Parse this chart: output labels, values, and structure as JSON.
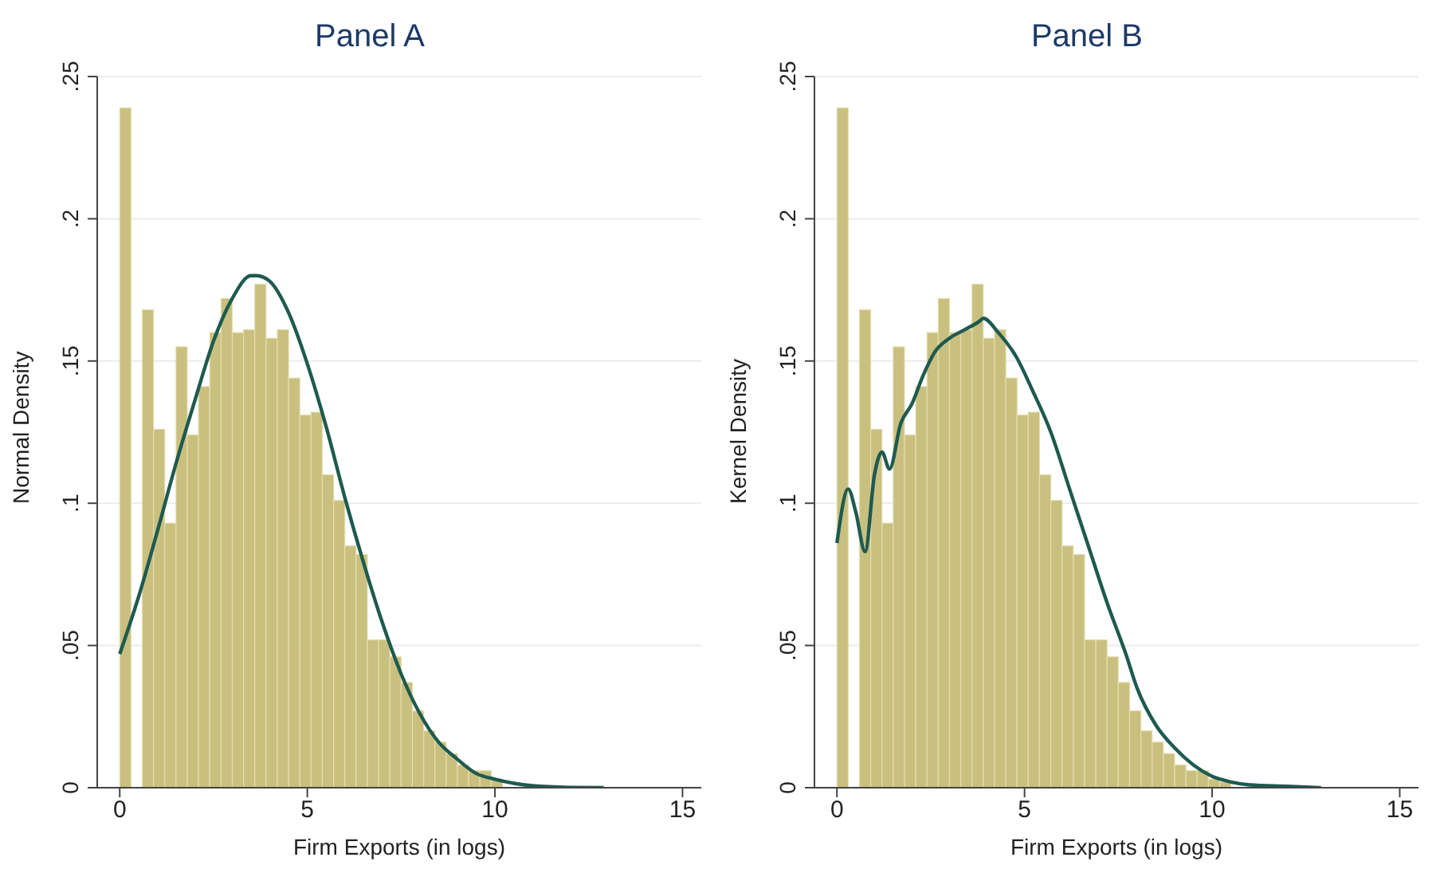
{
  "chart_data": [
    {
      "type": "histogram",
      "title": "Panel A",
      "xlabel": "Firm Exports (in logs)",
      "ylabel": "Normal Density",
      "color": "#c9c07f",
      "grid": "y",
      "bins": [
        0,
        0.3,
        0.6,
        0.9,
        1.2,
        1.5,
        1.8,
        2.1,
        2.4,
        2.7,
        3.0,
        3.3,
        3.6,
        3.9,
        4.2,
        4.5,
        4.8,
        5.1,
        5.4,
        5.7,
        6.0,
        6.3,
        6.6,
        6.9,
        7.2,
        7.5,
        7.8,
        8.1,
        8.4,
        8.7,
        9.0,
        9.3,
        9.6,
        9.9,
        10.2,
        10.5,
        10.8,
        11.1,
        11.4,
        11.7,
        12.0,
        12.3,
        12.6,
        12.9
      ],
      "values": [
        0.239,
        0,
        0.168,
        0.126,
        0.093,
        0.155,
        0.124,
        0.141,
        0.16,
        0.172,
        0.16,
        0.161,
        0.177,
        0.158,
        0.161,
        0.144,
        0.131,
        0.132,
        0.11,
        0.101,
        0.085,
        0.082,
        0.052,
        0.052,
        0.046,
        0.037,
        0.027,
        0.02,
        0.016,
        0.012,
        0.008,
        0.006,
        0.006,
        0.003,
        null,
        null,
        null,
        0.0005,
        0.0003,
        0.0003,
        0.0002,
        0.0002,
        null
      ],
      "series": [
        {
          "type": "line",
          "color": "#1e5a50",
          "x": [
            0,
            0.5,
            1,
            1.5,
            2,
            2.5,
            3,
            3.5,
            3.65,
            4,
            4.5,
            5,
            5.5,
            6,
            6.5,
            7,
            7.5,
            8,
            8.5,
            9,
            9.5,
            10,
            11,
            12,
            12.9
          ],
          "values": [
            0.047,
            0.067,
            0.09,
            0.114,
            0.136,
            0.157,
            0.172,
            0.18,
            0.18,
            0.178,
            0.167,
            0.149,
            0.127,
            0.102,
            0.079,
            0.058,
            0.04,
            0.026,
            0.016,
            0.01,
            0.005,
            0.003,
            0.0007,
            0.0001,
            0
          ]
        }
      ],
      "xlim": [
        -0.6,
        15.5
      ],
      "xticks": [
        0,
        5,
        10,
        15
      ],
      "ylim": [
        0,
        0.25
      ],
      "yticks": [
        0,
        {
          "value": 0.05,
          "label": ".05"
        },
        {
          "value": 0.1,
          "label": ".1"
        },
        {
          "value": 0.15,
          "label": ".15"
        },
        {
          "value": 0.2,
          "label": ".2"
        },
        {
          "value": 0.25,
          "label": ".25"
        }
      ]
    },
    {
      "type": "histogram",
      "title": "Panel B",
      "xlabel": "Firm Exports (in logs)",
      "ylabel": "Kernel Density",
      "color": "#c9c07f",
      "grid": "y",
      "bins": [
        0,
        0.3,
        0.6,
        0.9,
        1.2,
        1.5,
        1.8,
        2.1,
        2.4,
        2.7,
        3.0,
        3.3,
        3.6,
        3.9,
        4.2,
        4.5,
        4.8,
        5.1,
        5.4,
        5.7,
        6.0,
        6.3,
        6.6,
        6.9,
        7.2,
        7.5,
        7.8,
        8.1,
        8.4,
        8.7,
        9.0,
        9.3,
        9.6,
        9.9,
        10.2,
        10.5,
        10.8,
        11.1,
        11.4,
        11.7,
        12.0,
        12.3,
        12.6,
        12.9
      ],
      "values": [
        0.239,
        0,
        0.168,
        0.126,
        0.093,
        0.155,
        0.124,
        0.141,
        0.16,
        0.172,
        0.16,
        0.161,
        0.177,
        0.158,
        0.161,
        0.144,
        0.131,
        0.132,
        0.11,
        0.101,
        0.085,
        0.082,
        0.052,
        0.052,
        0.046,
        0.037,
        0.027,
        0.02,
        0.016,
        0.012,
        0.008,
        0.006,
        0.006,
        0.003,
        0.002,
        null,
        null,
        0.0005,
        0.0003,
        0.0003,
        0.0002,
        0.0002,
        null
      ],
      "series": [
        {
          "type": "line",
          "color": "#1e5a50",
          "x": [
            0,
            0.3,
            0.5,
            0.75,
            1.0,
            1.2,
            1.4,
            1.7,
            2.0,
            2.3,
            2.6,
            3.0,
            3.4,
            3.8,
            3.9,
            4.3,
            4.8,
            5.2,
            5.7,
            6.2,
            6.7,
            7.2,
            7.7,
            8.0,
            8.5,
            9.0,
            9.5,
            10,
            10.5,
            11,
            12,
            12.9
          ],
          "values": [
            0.086,
            0.105,
            0.097,
            0.083,
            0.11,
            0.118,
            0.112,
            0.128,
            0.135,
            0.145,
            0.153,
            0.158,
            0.161,
            0.164,
            0.165,
            0.16,
            0.151,
            0.14,
            0.125,
            0.105,
            0.085,
            0.065,
            0.047,
            0.035,
            0.022,
            0.014,
            0.008,
            0.004,
            0.002,
            0.001,
            0.0005,
            0
          ]
        }
      ],
      "xlim": [
        -0.6,
        15.5
      ],
      "xticks": [
        0,
        5,
        10,
        15
      ],
      "ylim": [
        0,
        0.25
      ],
      "yticks": [
        0,
        {
          "value": 0.05,
          "label": ".05"
        },
        {
          "value": 0.1,
          "label": ".1"
        },
        {
          "value": 0.15,
          "label": ".15"
        },
        {
          "value": 0.2,
          "label": ".2"
        },
        {
          "value": 0.25,
          "label": ".25"
        }
      ]
    }
  ]
}
